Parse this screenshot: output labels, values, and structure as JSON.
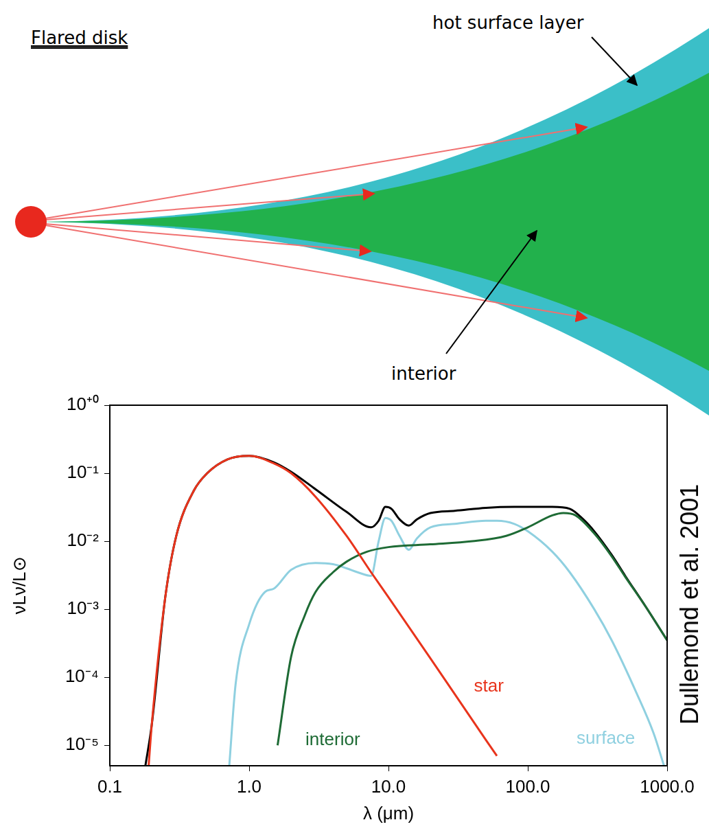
{
  "diagram": {
    "title": "Flared disk",
    "surface_label": "hot surface layer",
    "interior_label": "interior"
  },
  "credit": "Dullemond et al. 2001",
  "chart_data": {
    "type": "line",
    "log": true,
    "grid": false,
    "xlabel": "λ (μm)",
    "ylabel": "νLν/L⊙",
    "xlim": [
      0.1,
      1000
    ],
    "xticks": [
      0.1,
      {
        "value": 1,
        "label": "1.0"
      },
      {
        "value": 10,
        "label": "10.0"
      },
      {
        "value": 100,
        "label": "100.0"
      },
      {
        "value": 1000,
        "label": "1000.0"
      }
    ],
    "ylim": [
      5e-06,
      1
    ],
    "yticks": [
      {
        "value": 1,
        "label": "10⁺⁰"
      },
      {
        "value": 0.1,
        "label": "10⁻¹"
      },
      {
        "value": 0.01,
        "label": "10⁻²"
      },
      {
        "value": 0.001,
        "label": "10⁻³"
      },
      {
        "value": 0.0001,
        "label": "10⁻⁴"
      },
      {
        "value": 1e-05,
        "label": "10⁻⁵"
      }
    ],
    "series": [
      {
        "name": "star",
        "color": "#e8341c",
        "x": [
          0.19,
          0.2,
          0.25,
          0.3,
          0.4,
          0.5,
          0.7,
          1.0,
          1.5,
          2.0,
          3.0,
          5.0,
          7.5,
          10,
          20,
          30,
          50,
          60
        ],
        "values": [
          5e-06,
          2e-05,
          0.0015,
          0.012,
          0.055,
          0.1,
          0.16,
          0.18,
          0.14,
          0.1,
          0.045,
          0.012,
          0.0035,
          0.0015,
          0.00019,
          5.6e-05,
          1.2e-05,
          7e-06
        ]
      },
      {
        "name": "interior",
        "color": "#1e6b35",
        "x": [
          1.6,
          2,
          2.5,
          3,
          4,
          5,
          7,
          10,
          20,
          40,
          70,
          100,
          150,
          180,
          220,
          300,
          400,
          500,
          700,
          1000
        ],
        "values": [
          1e-05,
          0.0002,
          0.0008,
          0.0018,
          0.0035,
          0.005,
          0.007,
          0.0082,
          0.009,
          0.01,
          0.012,
          0.016,
          0.024,
          0.026,
          0.024,
          0.013,
          0.006,
          0.003,
          0.0011,
          0.00035
        ]
      },
      {
        "name": "surface",
        "color": "#8fd0e0",
        "x": [
          0.72,
          0.8,
          1.0,
          1.3,
          1.5,
          2,
          3,
          4,
          5,
          6,
          7.5,
          8.5,
          9.5,
          10.5,
          12,
          14,
          16,
          20,
          30,
          50,
          60,
          80,
          100,
          150,
          200,
          300,
          400,
          600,
          800,
          950
        ],
        "values": [
          5e-06,
          8e-05,
          0.0006,
          0.0018,
          0.002,
          0.0038,
          0.0048,
          0.0046,
          0.004,
          0.0035,
          0.0031,
          0.01,
          0.022,
          0.02,
          0.012,
          0.0075,
          0.011,
          0.016,
          0.018,
          0.02,
          0.02,
          0.018,
          0.014,
          0.007,
          0.0035,
          0.001,
          0.00035,
          6e-05,
          1.5e-05,
          5e-06
        ]
      },
      {
        "color": "#000000",
        "x": [
          0.18,
          0.2,
          0.25,
          0.3,
          0.4,
          0.5,
          0.7,
          1.0,
          1.5,
          2,
          3,
          5,
          7.5,
          8.5,
          9.5,
          10.5,
          12,
          14,
          16,
          20,
          30,
          50,
          80,
          100,
          150,
          200,
          250,
          300,
          400,
          500,
          700,
          1000
        ],
        "values": [
          5e-06,
          2e-05,
          0.0015,
          0.012,
          0.055,
          0.1,
          0.16,
          0.18,
          0.145,
          0.105,
          0.058,
          0.027,
          0.016,
          0.02,
          0.032,
          0.03,
          0.021,
          0.017,
          0.021,
          0.026,
          0.028,
          0.031,
          0.032,
          0.032,
          0.032,
          0.03,
          0.021,
          0.014,
          0.0063,
          0.0031,
          0.0011,
          0.00035
        ]
      }
    ]
  }
}
